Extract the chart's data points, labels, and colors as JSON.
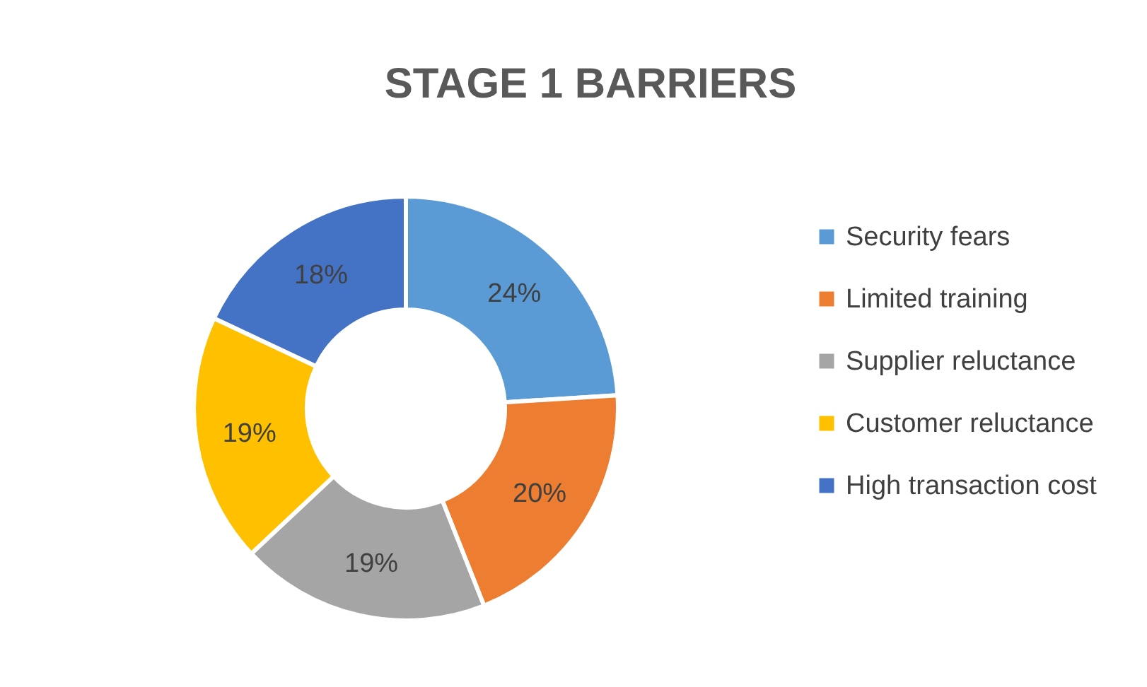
{
  "chart_data": {
    "type": "donut",
    "title": "STAGE 1 BARRIERS",
    "categories": [
      "Security fears",
      "Limited training",
      "Supplier reluctance",
      "Customer reluctance",
      "High transaction cost"
    ],
    "values": [
      24,
      20,
      19,
      19,
      18
    ],
    "value_labels": [
      "24%",
      "20%",
      "19%",
      "19%",
      "18%"
    ],
    "colors": [
      "#5b9bd5",
      "#ed7d31",
      "#a5a5a5",
      "#ffc000",
      "#4472c4"
    ],
    "legend": "right"
  }
}
